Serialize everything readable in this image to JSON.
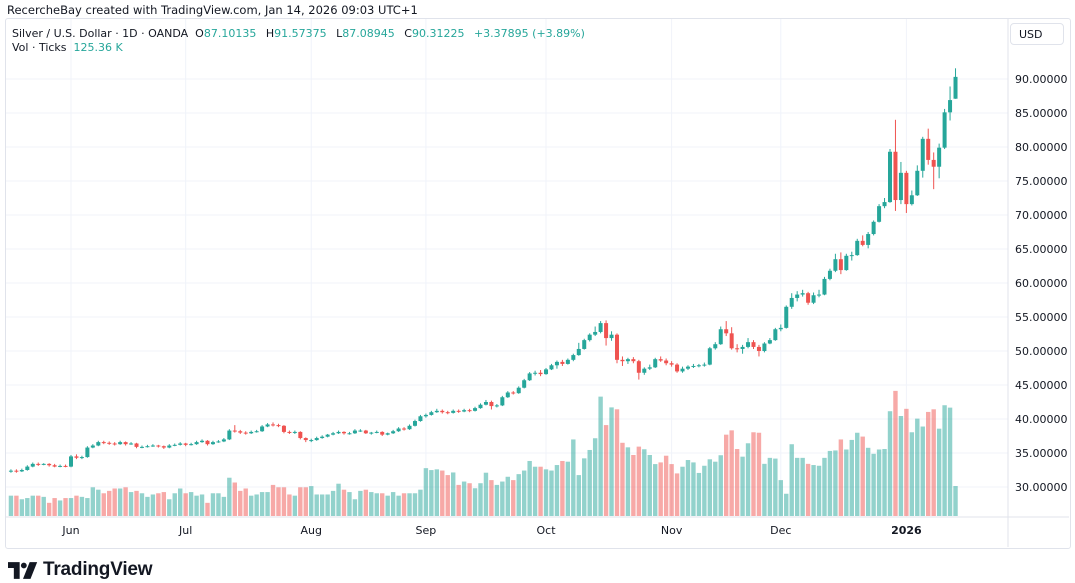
{
  "attribution": "RecercheBay created with TradingView.com, Jan 14, 2026 09:03 UTC+1",
  "legend": {
    "symbol": "Silver / U.S. Dollar · 1D · OANDA",
    "o_label": "O",
    "o": "87.10135",
    "h_label": "H",
    "h": "91.57375",
    "l_label": "L",
    "l": "87.08945",
    "c_label": "C",
    "c": "90.31225",
    "change": "+3.37895 (+3.89%)",
    "vol_label": "Vol · Ticks",
    "vol_value": "125.36 K"
  },
  "currency_button": "USD",
  "logo_text": "TradingView",
  "colors": {
    "up": "#26a69a",
    "down": "#ef5350",
    "grid": "#f0f3fa",
    "text": "#131722"
  },
  "chart_data": {
    "type": "candlestick",
    "title": "",
    "price_axis": {
      "ticks": [
        "90.00000",
        "85.00000",
        "80.00000",
        "75.00000",
        "70.00000",
        "65.00000",
        "60.00000",
        "55.00000",
        "50.00000",
        "45.00000",
        "40.00000",
        "35.00000",
        "30.00000"
      ],
      "side": "right"
    },
    "x_ticks": [
      {
        "label": "Jun",
        "date": "2025-06-02"
      },
      {
        "label": "Jul",
        "date": "2025-07-01"
      },
      {
        "label": "Aug",
        "date": "2025-08-01"
      },
      {
        "label": "Sep",
        "date": "2025-09-01"
      },
      {
        "label": "Oct",
        "date": "2025-10-01"
      },
      {
        "label": "Nov",
        "date": "2025-11-03"
      },
      {
        "label": "Dec",
        "date": "2025-12-01"
      },
      {
        "label": "2026",
        "date": "2026-01-01"
      }
    ],
    "grid": true,
    "volume_unit": "K",
    "dates": [
      "2025-05-16",
      "2025-05-19",
      "2025-05-20",
      "2025-05-21",
      "2025-05-22",
      "2025-05-23",
      "2025-05-26",
      "2025-05-27",
      "2025-05-28",
      "2025-05-29",
      "2025-05-30",
      "2025-06-02",
      "2025-06-03",
      "2025-06-04",
      "2025-06-05",
      "2025-06-06",
      "2025-06-09",
      "2025-06-10",
      "2025-06-11",
      "2025-06-12",
      "2025-06-13",
      "2025-06-16",
      "2025-06-17",
      "2025-06-18",
      "2025-06-19",
      "2025-06-20",
      "2025-06-23",
      "2025-06-24",
      "2025-06-25",
      "2025-06-26",
      "2025-06-27",
      "2025-06-30",
      "2025-07-01",
      "2025-07-02",
      "2025-07-03",
      "2025-07-04",
      "2025-07-07",
      "2025-07-08",
      "2025-07-09",
      "2025-07-10",
      "2025-07-11",
      "2025-07-14",
      "2025-07-15",
      "2025-07-16",
      "2025-07-17",
      "2025-07-18",
      "2025-07-21",
      "2025-07-22",
      "2025-07-23",
      "2025-07-24",
      "2025-07-25",
      "2025-07-28",
      "2025-07-29",
      "2025-07-30",
      "2025-07-31",
      "2025-08-01",
      "2025-08-04",
      "2025-08-05",
      "2025-08-06",
      "2025-08-07",
      "2025-08-08",
      "2025-08-11",
      "2025-08-12",
      "2025-08-13",
      "2025-08-14",
      "2025-08-15",
      "2025-08-18",
      "2025-08-19",
      "2025-08-20",
      "2025-08-21",
      "2025-08-22",
      "2025-08-25",
      "2025-08-26",
      "2025-08-27",
      "2025-08-28",
      "2025-08-29",
      "2025-09-01",
      "2025-09-02",
      "2025-09-03",
      "2025-09-04",
      "2025-09-05",
      "2025-09-08",
      "2025-09-09",
      "2025-09-10",
      "2025-09-11",
      "2025-09-12",
      "2025-09-15",
      "2025-09-16",
      "2025-09-17",
      "2025-09-18",
      "2025-09-19",
      "2025-09-22",
      "2025-09-23",
      "2025-09-24",
      "2025-09-25",
      "2025-09-26",
      "2025-09-29",
      "2025-09-30",
      "2025-10-01",
      "2025-10-02",
      "2025-10-03",
      "2025-10-06",
      "2025-10-07",
      "2025-10-08",
      "2025-10-09",
      "2025-10-10",
      "2025-10-13",
      "2025-10-14",
      "2025-10-15",
      "2025-10-16",
      "2025-10-17",
      "2025-10-20",
      "2025-10-21",
      "2025-10-22",
      "2025-10-23",
      "2025-10-24",
      "2025-10-27",
      "2025-10-28",
      "2025-10-29",
      "2025-10-30",
      "2025-10-31",
      "2025-11-03",
      "2025-11-04",
      "2025-11-05",
      "2025-11-06",
      "2025-11-07",
      "2025-11-10",
      "2025-11-11",
      "2025-11-12",
      "2025-11-13",
      "2025-11-14",
      "2025-11-17",
      "2025-11-18",
      "2025-11-19",
      "2025-11-20",
      "2025-11-21",
      "2025-11-24",
      "2025-11-25",
      "2025-11-26",
      "2025-11-27",
      "2025-11-28",
      "2025-12-01",
      "2025-12-02",
      "2025-12-03",
      "2025-12-04",
      "2025-12-05",
      "2025-12-08",
      "2025-12-09",
      "2025-12-10",
      "2025-12-11",
      "2025-12-12",
      "2025-12-15",
      "2025-12-16",
      "2025-12-17",
      "2025-12-18",
      "2025-12-19",
      "2025-12-22",
      "2025-12-23",
      "2025-12-24",
      "2025-12-25",
      "2025-12-26",
      "2025-12-29",
      "2025-12-30",
      "2025-12-31",
      "2026-01-01",
      "2026-01-02",
      "2026-01-05",
      "2026-01-06",
      "2026-01-07",
      "2026-01-08",
      "2026-01-09",
      "2026-01-12",
      "2026-01-13",
      "2026-01-14"
    ],
    "ohlc": [
      [
        32.3,
        32.6,
        32.1,
        32.4
      ],
      [
        32.4,
        32.6,
        32.1,
        32.3
      ],
      [
        32.3,
        32.7,
        32.2,
        32.5
      ],
      [
        32.5,
        33.2,
        32.4,
        33.0
      ],
      [
        33.0,
        33.6,
        32.9,
        33.4
      ],
      [
        33.4,
        33.6,
        33.1,
        33.3
      ],
      [
        33.3,
        33.5,
        33.2,
        33.4
      ],
      [
        33.4,
        33.5,
        33.0,
        33.2
      ],
      [
        33.2,
        33.4,
        32.9,
        33.0
      ],
      [
        33.0,
        33.3,
        32.9,
        33.1
      ],
      [
        33.1,
        33.3,
        32.9,
        33.0
      ],
      [
        33.0,
        34.7,
        32.9,
        34.5
      ],
      [
        34.5,
        34.8,
        34.1,
        34.3
      ],
      [
        34.3,
        34.6,
        34.1,
        34.4
      ],
      [
        34.4,
        36.0,
        34.3,
        35.8
      ],
      [
        35.8,
        36.3,
        35.7,
        36.1
      ],
      [
        36.1,
        36.8,
        36.0,
        36.6
      ],
      [
        36.6,
        36.8,
        36.3,
        36.5
      ],
      [
        36.5,
        36.7,
        36.2,
        36.4
      ],
      [
        36.4,
        36.6,
        36.1,
        36.3
      ],
      [
        36.3,
        36.8,
        36.2,
        36.6
      ],
      [
        36.6,
        36.7,
        36.1,
        36.3
      ],
      [
        36.3,
        36.6,
        36.2,
        36.4
      ],
      [
        36.4,
        36.5,
        35.7,
        35.9
      ],
      [
        35.9,
        36.1,
        35.7,
        35.9
      ],
      [
        35.9,
        36.2,
        35.8,
        36.0
      ],
      [
        36.0,
        36.3,
        35.9,
        36.1
      ],
      [
        36.1,
        36.2,
        35.8,
        36.0
      ],
      [
        36.0,
        36.1,
        35.6,
        35.8
      ],
      [
        35.8,
        36.3,
        35.7,
        36.1
      ],
      [
        36.1,
        36.4,
        36.0,
        36.2
      ],
      [
        36.2,
        36.6,
        36.1,
        36.4
      ],
      [
        36.4,
        36.5,
        36.0,
        36.2
      ],
      [
        36.2,
        36.5,
        36.1,
        36.3
      ],
      [
        36.3,
        36.8,
        36.2,
        36.6
      ],
      [
        36.6,
        37.0,
        36.5,
        36.8
      ],
      [
        36.8,
        36.9,
        36.1,
        36.3
      ],
      [
        36.3,
        36.8,
        36.2,
        36.6
      ],
      [
        36.6,
        36.9,
        36.5,
        36.7
      ],
      [
        36.7,
        37.2,
        36.6,
        37.0
      ],
      [
        37.0,
        38.5,
        36.9,
        38.3
      ],
      [
        38.3,
        39.1,
        38.0,
        38.2
      ],
      [
        38.2,
        38.4,
        37.8,
        38.0
      ],
      [
        38.0,
        38.2,
        37.7,
        37.9
      ],
      [
        37.9,
        38.3,
        37.8,
        38.1
      ],
      [
        38.1,
        38.4,
        38.0,
        38.2
      ],
      [
        38.2,
        39.1,
        38.1,
        38.9
      ],
      [
        38.9,
        39.4,
        38.8,
        39.2
      ],
      [
        39.2,
        39.5,
        38.9,
        39.1
      ],
      [
        39.1,
        39.3,
        38.8,
        39.0
      ],
      [
        39.0,
        39.1,
        37.9,
        38.1
      ],
      [
        38.1,
        38.3,
        37.8,
        38.0
      ],
      [
        38.0,
        38.3,
        37.8,
        38.1
      ],
      [
        38.1,
        38.2,
        37.0,
        37.2
      ],
      [
        37.2,
        37.3,
        36.6,
        36.9
      ],
      [
        36.9,
        37.1,
        36.6,
        36.9
      ],
      [
        36.9,
        37.4,
        36.8,
        37.2
      ],
      [
        37.2,
        37.6,
        37.1,
        37.4
      ],
      [
        37.4,
        37.8,
        37.3,
        37.7
      ],
      [
        37.7,
        38.1,
        37.6,
        37.9
      ],
      [
        37.9,
        38.3,
        37.8,
        38.1
      ],
      [
        38.1,
        38.2,
        37.7,
        37.9
      ],
      [
        37.9,
        38.1,
        37.7,
        37.9
      ],
      [
        37.9,
        38.5,
        37.8,
        38.3
      ],
      [
        38.3,
        38.5,
        38.1,
        38.3
      ],
      [
        38.3,
        38.4,
        37.8,
        37.9
      ],
      [
        37.9,
        38.1,
        37.7,
        38.0
      ],
      [
        38.0,
        38.3,
        37.9,
        38.1
      ],
      [
        38.1,
        38.2,
        37.5,
        37.7
      ],
      [
        37.7,
        38.0,
        37.6,
        37.9
      ],
      [
        37.9,
        38.4,
        37.8,
        38.2
      ],
      [
        38.2,
        38.8,
        38.1,
        38.6
      ],
      [
        38.6,
        38.8,
        38.3,
        38.5
      ],
      [
        38.5,
        39.2,
        38.4,
        39.0
      ],
      [
        39.0,
        39.9,
        38.9,
        39.7
      ],
      [
        39.7,
        40.6,
        39.6,
        40.4
      ],
      [
        40.4,
        40.8,
        40.2,
        40.6
      ],
      [
        40.6,
        41.2,
        40.5,
        41.0
      ],
      [
        41.0,
        41.5,
        40.9,
        41.2
      ],
      [
        41.2,
        41.4,
        40.8,
        41.0
      ],
      [
        41.0,
        41.2,
        40.7,
        40.9
      ],
      [
        40.9,
        41.4,
        40.8,
        41.2
      ],
      [
        41.2,
        41.4,
        40.9,
        41.1
      ],
      [
        41.1,
        41.5,
        41.0,
        41.3
      ],
      [
        41.3,
        41.5,
        41.0,
        41.2
      ],
      [
        41.2,
        41.8,
        41.1,
        41.6
      ],
      [
        41.6,
        42.3,
        41.5,
        42.1
      ],
      [
        42.1,
        42.8,
        42.0,
        42.5
      ],
      [
        42.5,
        42.7,
        41.4,
        41.9
      ],
      [
        41.9,
        42.2,
        41.7,
        42.0
      ],
      [
        42.0,
        43.4,
        41.9,
        43.2
      ],
      [
        43.2,
        44.1,
        43.1,
        43.9
      ],
      [
        43.9,
        44.1,
        43.6,
        43.8
      ],
      [
        43.8,
        44.8,
        43.7,
        44.6
      ],
      [
        44.6,
        45.9,
        44.5,
        45.7
      ],
      [
        45.7,
        46.9,
        45.6,
        46.7
      ],
      [
        46.7,
        47.1,
        46.4,
        46.8
      ],
      [
        46.8,
        47.2,
        46.3,
        46.6
      ],
      [
        46.6,
        47.5,
        46.5,
        47.3
      ],
      [
        47.3,
        48.1,
        47.2,
        47.9
      ],
      [
        47.9,
        48.6,
        47.4,
        48.4
      ],
      [
        48.4,
        48.7,
        47.8,
        48.1
      ],
      [
        48.1,
        48.9,
        48.0,
        48.7
      ],
      [
        48.7,
        49.6,
        48.5,
        49.4
      ],
      [
        49.4,
        51.2,
        49.3,
        50.3
      ],
      [
        50.3,
        51.8,
        50.2,
        51.6
      ],
      [
        51.6,
        52.6,
        51.4,
        52.4
      ],
      [
        52.4,
        53.6,
        52.2,
        52.8
      ],
      [
        52.8,
        54.4,
        52.6,
        54.1
      ],
      [
        54.1,
        54.5,
        50.8,
        51.9
      ],
      [
        51.9,
        52.9,
        51.5,
        52.4
      ],
      [
        52.4,
        52.6,
        48.2,
        48.7
      ],
      [
        48.7,
        49.2,
        47.8,
        48.5
      ],
      [
        48.5,
        49.0,
        48.1,
        48.8
      ],
      [
        48.8,
        49.1,
        48.2,
        48.5
      ],
      [
        48.5,
        48.7,
        45.8,
        46.8
      ],
      [
        46.8,
        47.6,
        46.5,
        47.4
      ],
      [
        47.4,
        48.0,
        47.2,
        47.6
      ],
      [
        47.6,
        49.0,
        47.5,
        48.8
      ],
      [
        48.8,
        49.2,
        48.4,
        48.6
      ],
      [
        48.6,
        48.9,
        47.9,
        48.2
      ],
      [
        48.2,
        48.5,
        47.7,
        48.0
      ],
      [
        48.0,
        48.2,
        46.8,
        47.0
      ],
      [
        47.0,
        47.7,
        46.8,
        47.4
      ],
      [
        47.4,
        47.9,
        47.2,
        47.7
      ],
      [
        47.7,
        48.1,
        47.5,
        47.8
      ],
      [
        47.8,
        48.1,
        47.6,
        47.9
      ],
      [
        47.9,
        48.3,
        47.7,
        48.0
      ],
      [
        48.0,
        50.6,
        47.9,
        50.4
      ],
      [
        50.4,
        51.3,
        50.2,
        51.0
      ],
      [
        51.0,
        53.6,
        50.9,
        53.2
      ],
      [
        53.2,
        54.4,
        52.2,
        52.6
      ],
      [
        52.6,
        53.5,
        50.2,
        50.4
      ],
      [
        50.4,
        51.0,
        49.8,
        50.3
      ],
      [
        50.3,
        50.9,
        49.6,
        50.6
      ],
      [
        50.6,
        51.9,
        50.4,
        51.3
      ],
      [
        51.3,
        51.6,
        50.3,
        50.6
      ],
      [
        50.6,
        50.9,
        49.2,
        50.0
      ],
      [
        50.0,
        51.3,
        49.8,
        51.1
      ],
      [
        51.1,
        51.9,
        51.0,
        51.6
      ],
      [
        51.6,
        53.4,
        51.5,
        53.2
      ],
      [
        53.2,
        53.9,
        52.9,
        53.4
      ],
      [
        53.4,
        56.7,
        53.3,
        56.5
      ],
      [
        56.5,
        58.5,
        56.2,
        57.8
      ],
      [
        57.8,
        58.8,
        57.3,
        58.3
      ],
      [
        58.3,
        59.0,
        58.0,
        58.5
      ],
      [
        58.5,
        58.7,
        56.8,
        57.1
      ],
      [
        57.1,
        58.6,
        56.9,
        58.2
      ],
      [
        58.2,
        59.0,
        57.9,
        58.3
      ],
      [
        58.3,
        60.9,
        58.2,
        60.6
      ],
      [
        60.6,
        62.1,
        60.4,
        61.8
      ],
      [
        61.8,
        64.3,
        61.6,
        63.5
      ],
      [
        63.5,
        64.5,
        61.3,
        61.9
      ],
      [
        61.9,
        64.3,
        61.8,
        64.0
      ],
      [
        64.0,
        64.6,
        63.3,
        64.1
      ],
      [
        64.1,
        66.5,
        64.0,
        66.2
      ],
      [
        66.2,
        67.0,
        65.4,
        65.6
      ],
      [
        65.6,
        67.5,
        65.1,
        67.2
      ],
      [
        67.2,
        69.2,
        67.0,
        69.0
      ],
      [
        69.0,
        71.6,
        68.9,
        71.3
      ],
      [
        71.3,
        72.5,
        71.0,
        71.9
      ],
      [
        71.9,
        79.7,
        71.8,
        79.3
      ],
      [
        79.3,
        84.0,
        70.6,
        72.2
      ],
      [
        72.2,
        77.8,
        71.6,
        76.2
      ],
      [
        76.2,
        76.5,
        70.3,
        71.6
      ],
      [
        71.6,
        73.6,
        71.4,
        72.9
      ],
      [
        72.9,
        77.3,
        72.8,
        76.5
      ],
      [
        76.5,
        81.5,
        75.5,
        81.2
      ],
      [
        81.2,
        82.7,
        77.4,
        78.1
      ],
      [
        78.1,
        79.2,
        73.8,
        77.1
      ],
      [
        77.1,
        80.5,
        75.4,
        79.9
      ],
      [
        79.9,
        85.6,
        79.7,
        85.1
      ],
      [
        85.1,
        88.9,
        83.9,
        86.9
      ],
      [
        87.10135,
        91.57375,
        87.08945,
        90.31225
      ]
    ],
    "volume": [
      85,
      85,
      70,
      75,
      85,
      85,
      80,
      55,
      75,
      65,
      75,
      75,
      85,
      80,
      75,
      120,
      110,
      95,
      105,
      115,
      115,
      120,
      100,
      105,
      95,
      80,
      90,
      95,
      100,
      70,
      95,
      115,
      95,
      100,
      85,
      90,
      55,
      95,
      95,
      80,
      160,
      140,
      105,
      115,
      85,
      90,
      100,
      100,
      130,
      120,
      120,
      90,
      85,
      120,
      120,
      125,
      90,
      90,
      90,
      105,
      135,
      110,
      100,
      70,
      105,
      110,
      100,
      95,
      95,
      85,
      100,
      85,
      95,
      95,
      95,
      110,
      200,
      192,
      195,
      190,
      171,
      182,
      130,
      144,
      137,
      116,
      137,
      181,
      150,
      130,
      144,
      164,
      150,
      175,
      190,
      230,
      206,
      206,
      195,
      190,
      213,
      230,
      227,
      320,
      171,
      241,
      276,
      325,
      499,
      380,
      454,
      446,
      306,
      287,
      255,
      290,
      279,
      255,
      217,
      224,
      252,
      217,
      178,
      206,
      234,
      224,
      180,
      210,
      237,
      227,
      254,
      340,
      358,
      280,
      248,
      304,
      350,
      348,
      218,
      243,
      240,
      150,
      93,
      300,
      243,
      243,
      218,
      213,
      210,
      243,
      272,
      274,
      320,
      278,
      318,
      348,
      332,
      285,
      260,
      278,
      280,
      438,
      523,
      418,
      448,
      350,
      407,
      374,
      435,
      446,
      365,
      463,
      453,
      125.36
    ]
  }
}
